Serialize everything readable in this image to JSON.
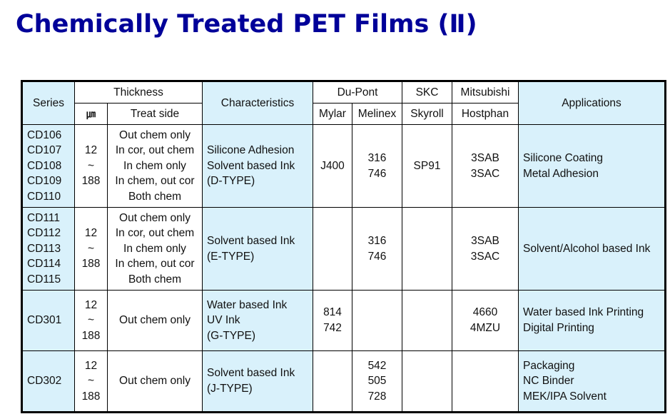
{
  "title": "Chemically Treated PET Films (Ⅱ)",
  "headers": {
    "series": "Series",
    "thickness": "Thickness",
    "thickness_unit": "㎛",
    "treat_side": "Treat side",
    "characteristics": "Characteristics",
    "dupont": "Du-Pont",
    "mylar": "Mylar",
    "melinex": "Melinex",
    "skc": "SKC",
    "skyroll": "Skyroll",
    "mitsubishi": "Mitsubishi",
    "hostphan": "Hostphan",
    "applications": "Applications"
  },
  "rows": [
    {
      "series": "CD106\nCD107\nCD108\nCD109\nCD110",
      "thickness": "12\n~\n188",
      "treat_side": "Out chem only\nIn cor, out chem\nIn chem only\nIn chem, out cor\nBoth chem",
      "characteristics": "Silicone Adhesion\nSolvent based Ink\n(D-TYPE)",
      "mylar": "J400",
      "melinex": "316\n746",
      "skyroll": "SP91",
      "hostphan": "3SAB\n3SAC",
      "applications": "Silicone Coating\nMetal Adhesion"
    },
    {
      "series": "CD111\nCD112\nCD113\nCD114\nCD115",
      "thickness": "12\n~\n188",
      "treat_side": "Out chem only\nIn cor, out chem\nIn chem only\nIn chem, out cor\nBoth chem",
      "characteristics": "Solvent based Ink\n(E-TYPE)",
      "mylar": "",
      "melinex": "316\n746",
      "skyroll": "",
      "hostphan": "3SAB\n3SAC",
      "applications": "Solvent/Alcohol based Ink"
    },
    {
      "series": "CD301",
      "thickness": "12\n~\n188",
      "treat_side": "Out chem only",
      "characteristics": "Water based Ink\nUV Ink\n(G-TYPE)",
      "mylar": "814\n742",
      "melinex": "",
      "skyroll": "",
      "hostphan": "4660\n4MZU",
      "applications": "Water based Ink Printing\nDigital Printing"
    },
    {
      "series": "CD302",
      "thickness": "12\n~\n188",
      "treat_side": "Out chem only",
      "characteristics": "Solvent based Ink\n(J-TYPE)",
      "mylar": "",
      "melinex": "542\n505\n728",
      "skyroll": "",
      "hostphan": "",
      "applications": "Packaging\nNC Binder\nMEK/IPA Solvent"
    }
  ],
  "colors": {
    "title": "#000099",
    "cell_blue": "#d9f1fb",
    "border": "#000000"
  }
}
